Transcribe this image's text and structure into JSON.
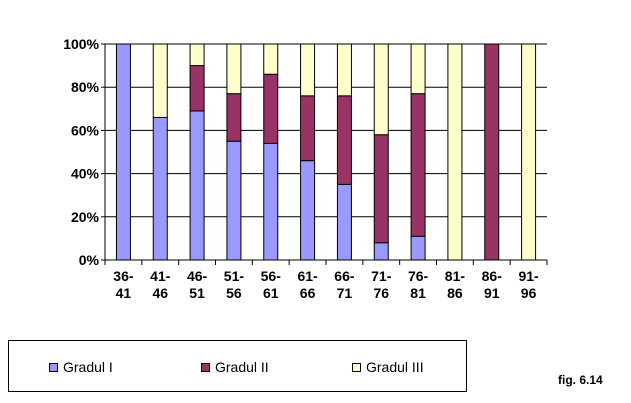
{
  "chart_data": {
    "type": "bar",
    "stacked": true,
    "percent": true,
    "categories": [
      [
        "36-",
        "41"
      ],
      [
        "41-",
        "46"
      ],
      [
        "46-",
        "51"
      ],
      [
        "51-",
        "56"
      ],
      [
        "56-",
        "61"
      ],
      [
        "61-",
        "66"
      ],
      [
        "66-",
        "71"
      ],
      [
        "71-",
        "76"
      ],
      [
        "76-",
        "81"
      ],
      [
        "81-",
        "86"
      ],
      [
        "86-",
        "91"
      ],
      [
        "91-",
        "96"
      ]
    ],
    "series": [
      {
        "name": "Gradul I",
        "color": "#9999ff",
        "values": [
          100,
          66,
          69,
          55,
          54,
          46,
          35,
          8,
          11,
          0,
          0,
          0
        ]
      },
      {
        "name": "Gradul II",
        "color": "#993366",
        "values": [
          0,
          0,
          21,
          22,
          32,
          30,
          41,
          50,
          66,
          0,
          100,
          0
        ]
      },
      {
        "name": "Gradul III",
        "color": "#ffffcc",
        "values": [
          0,
          34,
          10,
          23,
          14,
          24,
          24,
          42,
          23,
          100,
          0,
          100
        ]
      }
    ],
    "yticks": [
      "0%",
      "20%",
      "40%",
      "60%",
      "80%",
      "100%"
    ],
    "ylim": [
      0,
      100
    ],
    "grid": true,
    "legend": "bottom"
  },
  "figure_label": "fig. 6.14"
}
